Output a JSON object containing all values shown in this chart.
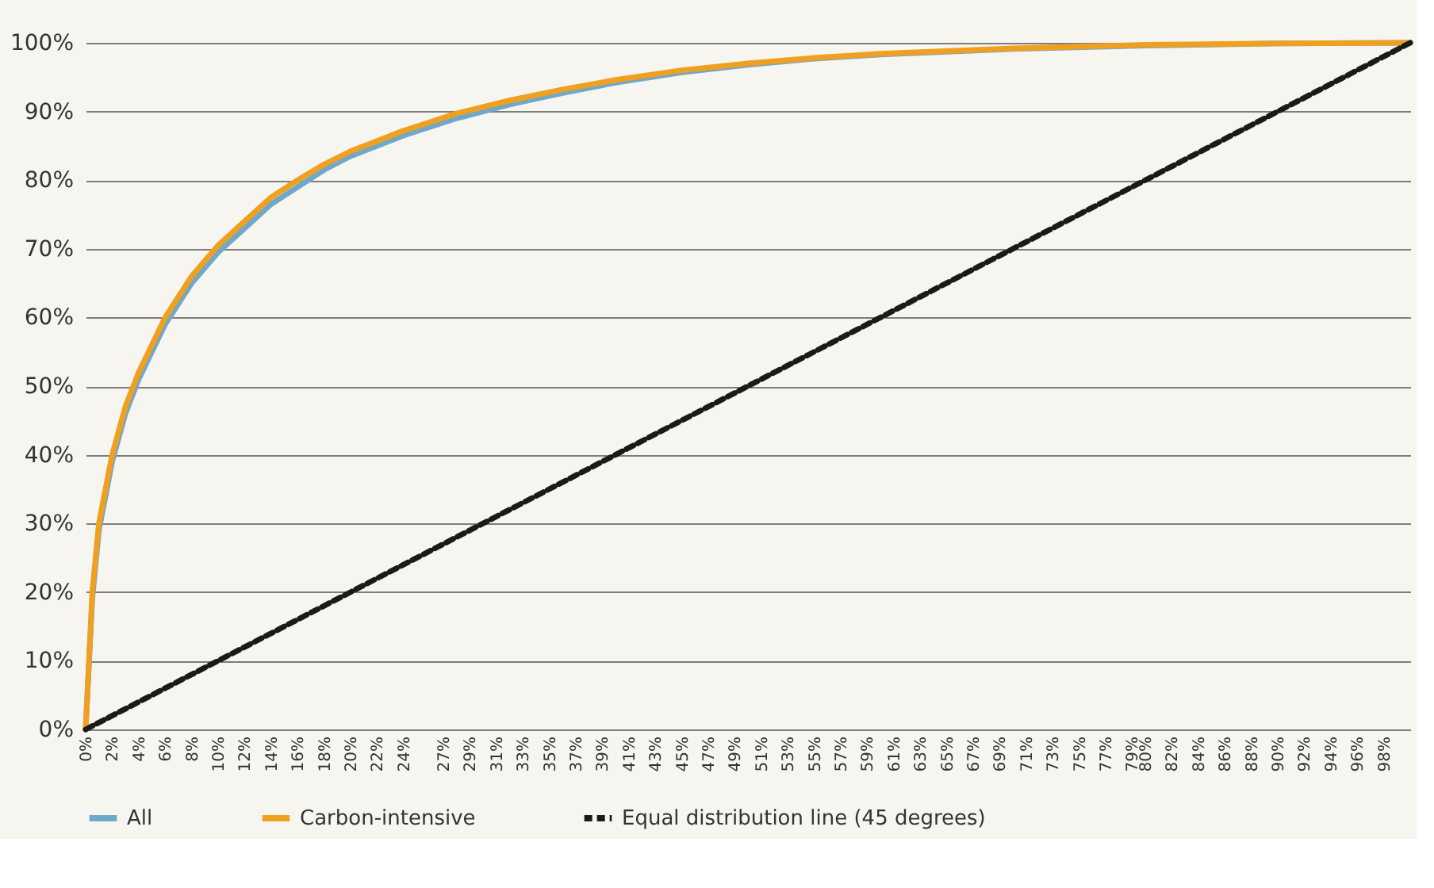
{
  "chart_data": {
    "type": "line",
    "legend": "bottom",
    "grid": "y",
    "line_style": "solid",
    "marker": "none",
    "xlim": [
      0,
      100
    ],
    "ylim": [
      0,
      100
    ],
    "yticks": [
      {
        "value": 0,
        "label": "0%"
      },
      {
        "value": 10,
        "label": "10%"
      },
      {
        "value": 20,
        "label": "20%"
      },
      {
        "value": 30,
        "label": "30%"
      },
      {
        "value": 40,
        "label": "40%"
      },
      {
        "value": 50,
        "label": "50%"
      },
      {
        "value": 60,
        "label": "60%"
      },
      {
        "value": 70,
        "label": "70%"
      },
      {
        "value": 80,
        "label": "80%"
      },
      {
        "value": 90,
        "label": "90%"
      },
      {
        "value": 100,
        "label": "100%"
      }
    ],
    "xticks": [
      {
        "value": 0,
        "label": "0%"
      },
      {
        "value": 2,
        "label": "2%"
      },
      {
        "value": 4,
        "label": "4%"
      },
      {
        "value": 6,
        "label": "6%"
      },
      {
        "value": 8,
        "label": "8%"
      },
      {
        "value": 10,
        "label": "10%"
      },
      {
        "value": 12,
        "label": "12%"
      },
      {
        "value": 14,
        "label": "14%"
      },
      {
        "value": 16,
        "label": "16%"
      },
      {
        "value": 18,
        "label": "18%"
      },
      {
        "value": 20,
        "label": "20%"
      },
      {
        "value": 22,
        "label": "22%"
      },
      {
        "value": 24,
        "label": "24%"
      },
      {
        "value": 27,
        "label": "27%"
      },
      {
        "value": 29,
        "label": "29%"
      },
      {
        "value": 31,
        "label": "31%"
      },
      {
        "value": 33,
        "label": "33%"
      },
      {
        "value": 35,
        "label": "35%"
      },
      {
        "value": 37,
        "label": "37%"
      },
      {
        "value": 39,
        "label": "39%"
      },
      {
        "value": 41,
        "label": "41%"
      },
      {
        "value": 43,
        "label": "43%"
      },
      {
        "value": 45,
        "label": "45%"
      },
      {
        "value": 47,
        "label": "47%"
      },
      {
        "value": 49,
        "label": "49%"
      },
      {
        "value": 51,
        "label": "51%"
      },
      {
        "value": 53,
        "label": "53%"
      },
      {
        "value": 55,
        "label": "55%"
      },
      {
        "value": 57,
        "label": "57%"
      },
      {
        "value": 59,
        "label": "59%"
      },
      {
        "value": 61,
        "label": "61%"
      },
      {
        "value": 63,
        "label": "63%"
      },
      {
        "value": 65,
        "label": "65%"
      },
      {
        "value": 67,
        "label": "67%"
      },
      {
        "value": 69,
        "label": "69%"
      },
      {
        "value": 71,
        "label": "71%"
      },
      {
        "value": 73,
        "label": "73%"
      },
      {
        "value": 75,
        "label": "75%"
      },
      {
        "value": 77,
        "label": "77%"
      },
      {
        "value": 79,
        "label": "79%"
      },
      {
        "value": 80,
        "label": "80%"
      },
      {
        "value": 82,
        "label": "82%"
      },
      {
        "value": 84,
        "label": "84%"
      },
      {
        "value": 86,
        "label": "86%"
      },
      {
        "value": 88,
        "label": "88%"
      },
      {
        "value": 90,
        "label": "90%"
      },
      {
        "value": 92,
        "label": "92%"
      },
      {
        "value": 94,
        "label": "94%"
      },
      {
        "value": 96,
        "label": "96%"
      },
      {
        "value": 98,
        "label": "98%"
      }
    ],
    "series": [
      {
        "name": "All",
        "color": "#6fa8c8",
        "x": [
          0,
          0.5,
          1,
          2,
          3,
          4,
          6,
          8,
          10,
          12,
          14,
          16,
          18,
          20,
          24,
          28,
          32,
          36,
          40,
          45,
          50,
          55,
          60,
          70,
          80,
          90,
          100
        ],
        "values": [
          0,
          19,
          29,
          39,
          46,
          51,
          59,
          65,
          69.5,
          73,
          76.5,
          79,
          81.5,
          83.5,
          86.5,
          89,
          91,
          92.7,
          94.2,
          95.7,
          96.8,
          97.7,
          98.3,
          99.1,
          99.6,
          99.9,
          100
        ]
      },
      {
        "name": "Carbon-intensive",
        "color": "#f0a020",
        "x": [
          0,
          0.5,
          1,
          2,
          3,
          4,
          6,
          8,
          10,
          12,
          14,
          16,
          18,
          20,
          24,
          28,
          32,
          36,
          40,
          45,
          50,
          55,
          60,
          70,
          80,
          90,
          100
        ],
        "values": [
          0,
          20,
          30,
          40,
          47,
          52,
          60,
          66,
          70.5,
          74,
          77.5,
          80,
          82.3,
          84.2,
          87.2,
          89.7,
          91.6,
          93.2,
          94.6,
          96,
          97,
          97.8,
          98.4,
          99.2,
          99.7,
          99.9,
          100
        ]
      },
      {
        "name": "Equal distribution line (45 degrees)",
        "color": "#1a1a1a",
        "line_style": "dashed",
        "x": [
          0,
          100
        ],
        "values": [
          0,
          100
        ]
      }
    ]
  }
}
